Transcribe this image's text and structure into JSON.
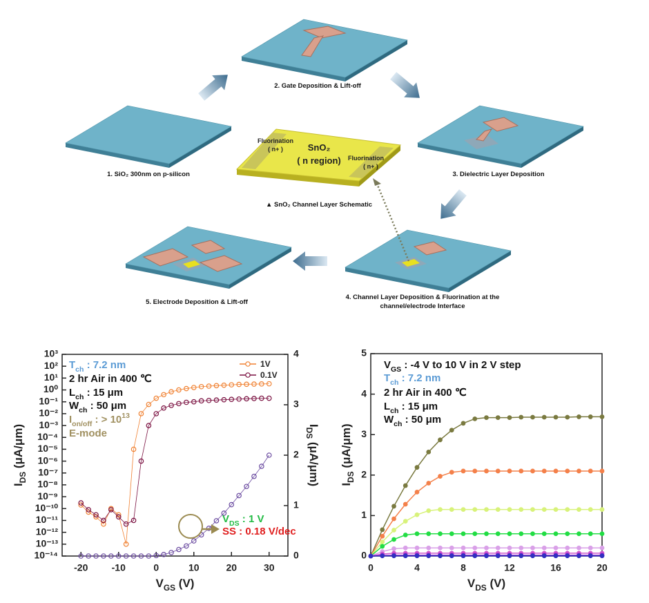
{
  "diagram": {
    "steps": [
      "1. SiO₂ 300nm on p-silicon",
      "2. Gate Deposition & Lift-off",
      "3. Dielectric Layer Deposition",
      [
        "4. Channel Layer Deposition & Fluorination at the",
        "channel/electrode Interface"
      ],
      "5. Electrode Deposition & Lift-off"
    ],
    "schematic": {
      "caption": "▲ SnO₂ Channel Layer Schematic",
      "center": [
        "SnO₂",
        "( n region)"
      ],
      "left": [
        "Fluorination",
        "( n+ )"
      ],
      "right": [
        "Fluorination",
        "( n+ )"
      ]
    }
  },
  "chart_data": [
    {
      "type": "scatter",
      "ylog": true,
      "marker": "open",
      "legend": "upper right",
      "xlabel": [
        "V",
        {
          "sub": "GS"
        },
        " (V)"
      ],
      "ylabel": [
        "I",
        {
          "sub": "DS"
        },
        " (μA/μm)"
      ],
      "y2label": [
        "I",
        {
          "sub": "DS"
        },
        " (μA/μm)"
      ],
      "xlim": [
        -25,
        35
      ],
      "xticks": [
        -20,
        -10,
        0,
        10,
        20,
        30
      ],
      "ylim": [
        1e-14,
        1000
      ],
      "yticks": [
        {
          "value": 1e-14,
          "label": "10⁻¹⁴"
        },
        {
          "value": 1e-13,
          "label": "10⁻¹³"
        },
        {
          "value": 1e-12,
          "label": "10⁻¹²"
        },
        {
          "value": 1e-11,
          "label": "10⁻¹¹"
        },
        {
          "value": 1e-10,
          "label": "10⁻¹⁰"
        },
        {
          "value": 1e-09,
          "label": "10⁻⁹"
        },
        {
          "value": 1e-08,
          "label": "10⁻⁸"
        },
        {
          "value": 1e-07,
          "label": "10⁻⁷"
        },
        {
          "value": 1e-06,
          "label": "10⁻⁶"
        },
        {
          "value": 1e-05,
          "label": "10⁻⁵"
        },
        {
          "value": 0.0001,
          "label": "10⁻⁴"
        },
        {
          "value": 0.001,
          "label": "10⁻³"
        },
        {
          "value": 0.01,
          "label": "10⁻²"
        },
        {
          "value": 0.1,
          "label": "10⁻¹"
        },
        {
          "value": 1,
          "label": "10⁰"
        },
        {
          "value": 10,
          "label": "10¹"
        },
        {
          "value": 100,
          "label": "10²"
        },
        {
          "value": 1000,
          "label": "10³"
        }
      ],
      "y2lim": [
        0,
        4
      ],
      "y2ticks": [
        0,
        1,
        2,
        3,
        4
      ],
      "x": [
        -20,
        -18,
        -16,
        -14,
        -12,
        -10,
        -8,
        -6,
        -4,
        -2,
        0,
        2,
        4,
        6,
        8,
        10,
        12,
        14,
        16,
        18,
        20,
        22,
        24,
        26,
        28,
        30
      ],
      "series": [
        {
          "name": "1V",
          "color": "#f08030",
          "values": [
            2e-10,
            5e-11,
            2e-11,
            5e-12,
            1e-10,
            3e-11,
            1e-13,
            1e-05,
            0.01,
            0.06,
            0.2,
            0.4,
            0.7,
            1.0,
            1.3,
            1.6,
            1.9,
            2.1,
            2.3,
            2.5,
            2.7,
            2.9,
            3.0,
            3.1,
            3.2,
            3.3
          ]
        },
        {
          "name": "0.1V",
          "color": "#7a1040",
          "values": [
            3e-10,
            8e-11,
            3e-11,
            1e-11,
            8e-11,
            2e-11,
            5e-12,
            1e-11,
            1e-06,
            0.001,
            0.01,
            0.03,
            0.05,
            0.07,
            0.09,
            0.1,
            0.12,
            0.13,
            0.14,
            0.15,
            0.16,
            0.17,
            0.18,
            0.19,
            0.2,
            0.2
          ]
        },
        {
          "axis": "y2",
          "color": "#6a4aa0",
          "values": [
            0,
            0,
            0,
            0,
            0,
            0,
            0,
            0,
            0,
            0,
            0.01,
            0.03,
            0.07,
            0.13,
            0.2,
            0.3,
            0.42,
            0.55,
            0.7,
            0.85,
            1.02,
            1.2,
            1.38,
            1.58,
            1.78,
            2.0
          ]
        }
      ],
      "annotations": [
        {
          "text": [
            "T",
            {
              "sub": "ch"
            },
            " : 7.2 nm"
          ],
          "color": "#5b9bd5"
        },
        {
          "text": "2 hr Air in 400 ℃",
          "color": "#111111"
        },
        {
          "text": [
            "L",
            {
              "sub": "ch"
            },
            " : 15 μm"
          ],
          "color": "#111111"
        },
        {
          "text": [
            "W",
            {
              "sub": "ch"
            },
            " : 50 μm"
          ],
          "color": "#111111"
        },
        {
          "text": [
            "I",
            {
              "sub": "on/off"
            },
            " : > 10",
            {
              "sup": "13"
            }
          ],
          "color": "#a09060"
        },
        {
          "text": "E-mode",
          "color": "#a09060"
        },
        {
          "text": [
            "V",
            {
              "sub": "DS"
            },
            " : 1 V"
          ],
          "color": "#22bb44"
        },
        {
          "text": "SS : 0.18 V/dec",
          "color": "#e02020"
        }
      ]
    },
    {
      "type": "line",
      "marker": "filled",
      "xlabel": [
        "V",
        {
          "sub": "DS"
        },
        " (V)"
      ],
      "ylabel": [
        "I",
        {
          "sub": "DS"
        },
        " (μA/μm)"
      ],
      "xlim": [
        0,
        20
      ],
      "xticks": [
        0,
        4,
        8,
        12,
        16,
        20
      ],
      "ylim": [
        0,
        5
      ],
      "yticks": [
        0,
        1,
        2,
        3,
        4,
        5
      ],
      "x": [
        0,
        1,
        2,
        3,
        4,
        5,
        6,
        7,
        8,
        9,
        10,
        11,
        12,
        13,
        14,
        15,
        16,
        17,
        18,
        19,
        20
      ],
      "series": [
        {
          "color": "#7a7a40",
          "values": [
            0,
            0.65,
            1.23,
            1.74,
            2.19,
            2.57,
            2.87,
            3.11,
            3.28,
            3.39,
            3.42,
            3.42,
            3.42,
            3.43,
            3.43,
            3.43,
            3.43,
            3.43,
            3.44,
            3.44,
            3.44
          ]
        },
        {
          "color": "#f4804a",
          "values": [
            0,
            0.49,
            0.92,
            1.28,
            1.58,
            1.8,
            1.97,
            2.07,
            2.1,
            2.1,
            2.1,
            2.1,
            2.1,
            2.1,
            2.1,
            2.1,
            2.1,
            2.1,
            2.1,
            2.1,
            2.1
          ]
        },
        {
          "color": "#d8f27a",
          "values": [
            0,
            0.35,
            0.64,
            0.86,
            1.02,
            1.12,
            1.15,
            1.15,
            1.15,
            1.15,
            1.15,
            1.15,
            1.15,
            1.15,
            1.15,
            1.15,
            1.15,
            1.15,
            1.15,
            1.15,
            1.15
          ]
        },
        {
          "color": "#22dd44",
          "values": [
            0,
            0.24,
            0.41,
            0.52,
            0.55,
            0.55,
            0.55,
            0.55,
            0.55,
            0.55,
            0.55,
            0.55,
            0.55,
            0.55,
            0.55,
            0.55,
            0.55,
            0.55,
            0.55,
            0.55,
            0.55
          ]
        },
        {
          "color": "#d9a0e8",
          "values": [
            0,
            0.11,
            0.18,
            0.2,
            0.2,
            0.2,
            0.2,
            0.2,
            0.2,
            0.2,
            0.2,
            0.2,
            0.2,
            0.2,
            0.2,
            0.2,
            0.2,
            0.2,
            0.2,
            0.2,
            0.2
          ]
        },
        {
          "color": "#cc55cc",
          "values": [
            0,
            0.05,
            0.07,
            0.07,
            0.07,
            0.07,
            0.07,
            0.07,
            0.07,
            0.07,
            0.07,
            0.07,
            0.07,
            0.07,
            0.07,
            0.07,
            0.07,
            0.07,
            0.07,
            0.07,
            0.07
          ]
        },
        {
          "color": "#9a22cc",
          "values": [
            0,
            0.015,
            0.02,
            0.02,
            0.02,
            0.02,
            0.02,
            0.02,
            0.02,
            0.02,
            0.02,
            0.02,
            0.02,
            0.02,
            0.02,
            0.02,
            0.02,
            0.02,
            0.02,
            0.02,
            0.02
          ]
        },
        {
          "color": "#3030c0",
          "values": [
            0,
            0.004,
            0.005,
            0.005,
            0.005,
            0.005,
            0.005,
            0.005,
            0.005,
            0.005,
            0.005,
            0.005,
            0.005,
            0.005,
            0.005,
            0.005,
            0.005,
            0.005,
            0.005,
            0.005,
            0.005
          ]
        }
      ],
      "annotations": [
        {
          "text": [
            "V",
            {
              "sub": "GS"
            },
            " : -4 V to 10 V in 2 V step"
          ],
          "color": "#111111"
        },
        {
          "text": [
            "T",
            {
              "sub": "ch"
            },
            " : 7.2 nm"
          ],
          "color": "#5b9bd5"
        },
        {
          "text": "2 hr Air in 400 ℃",
          "color": "#111111"
        },
        {
          "text": [
            "L",
            {
              "sub": "ch"
            },
            " : 15 μm"
          ],
          "color": "#111111"
        },
        {
          "text": [
            "W",
            {
              "sub": "ch"
            },
            " : 50 μm"
          ],
          "color": "#111111"
        }
      ]
    }
  ]
}
